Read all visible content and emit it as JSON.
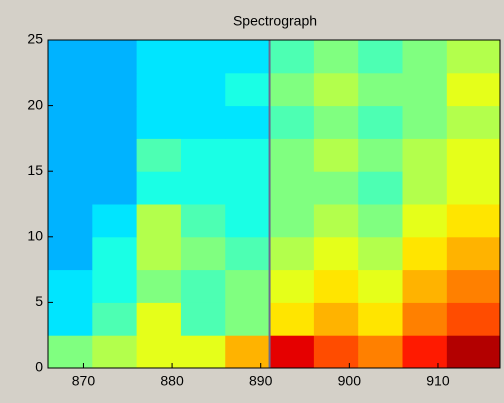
{
  "chart_data": {
    "type": "heatmap",
    "title": "Spectrograph",
    "colormap": "jet",
    "clim": [
      0,
      1
    ],
    "x_edges": [
      866,
      871,
      876,
      881,
      886,
      891,
      896,
      901,
      906,
      911,
      917
    ],
    "y_edges": [
      0,
      2.5,
      5,
      7.5,
      10,
      12.5,
      15,
      17.5,
      20,
      22.5,
      25
    ],
    "z": [
      [
        0.5,
        0.55,
        0.6,
        0.6,
        0.7,
        0.9,
        0.8,
        0.75,
        0.85,
        0.95
      ],
      [
        0.35,
        0.45,
        0.6,
        0.45,
        0.5,
        0.65,
        0.7,
        0.65,
        0.75,
        0.8
      ],
      [
        0.35,
        0.4,
        0.5,
        0.45,
        0.5,
        0.6,
        0.65,
        0.6,
        0.7,
        0.75
      ],
      [
        0.3,
        0.4,
        0.55,
        0.5,
        0.45,
        0.55,
        0.6,
        0.55,
        0.65,
        0.7
      ],
      [
        0.3,
        0.35,
        0.55,
        0.45,
        0.4,
        0.5,
        0.55,
        0.5,
        0.6,
        0.65
      ],
      [
        0.3,
        0.3,
        0.4,
        0.4,
        0.4,
        0.5,
        0.5,
        0.45,
        0.55,
        0.6
      ],
      [
        0.3,
        0.3,
        0.45,
        0.4,
        0.4,
        0.5,
        0.55,
        0.5,
        0.55,
        0.6
      ],
      [
        0.3,
        0.3,
        0.35,
        0.35,
        0.35,
        0.45,
        0.5,
        0.45,
        0.5,
        0.55
      ],
      [
        0.3,
        0.3,
        0.35,
        0.35,
        0.4,
        0.5,
        0.55,
        0.5,
        0.5,
        0.6
      ],
      [
        0.3,
        0.3,
        0.35,
        0.35,
        0.35,
        0.45,
        0.5,
        0.45,
        0.5,
        0.55
      ]
    ],
    "marker_x": 891,
    "marker_color": "#6b6b8e",
    "xlim": [
      866,
      917
    ],
    "ylim": [
      0,
      25
    ],
    "xticks": [
      870,
      880,
      890,
      900,
      910
    ],
    "yticks": [
      0,
      5,
      10,
      15,
      20,
      25
    ]
  }
}
